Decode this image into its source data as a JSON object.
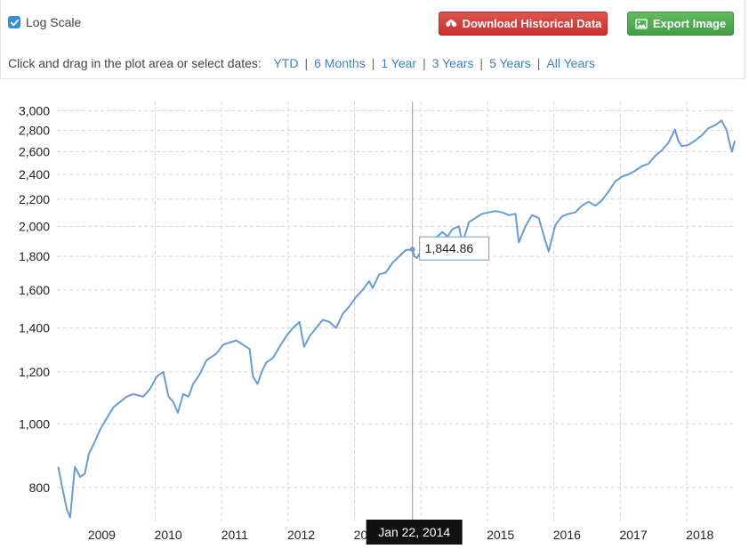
{
  "toolbar": {
    "log_scale_label": "Log Scale",
    "log_scale_checked": true,
    "download_label": "Download Historical Data",
    "export_label": "Export Image",
    "download_color": "#d9534f",
    "export_color": "#5cb85c"
  },
  "range_selector": {
    "prompt": "Click and drag in the plot area or select dates:",
    "options": [
      "YTD",
      "6 Months",
      "1 Year",
      "3 Years",
      "5 Years",
      "All Years"
    ]
  },
  "chart_data": {
    "type": "line",
    "title": "",
    "xlabel": "",
    "ylabel": "",
    "y_scale": "log",
    "grid": true,
    "line_color": "#6a9bd1",
    "xlim": [
      2008.7,
      2018.9
    ],
    "ylim": [
      710,
      3100
    ],
    "y_ticks": [
      800,
      1000,
      1200,
      1400,
      1600,
      1800,
      2000,
      2200,
      2400,
      2600,
      2800,
      3000
    ],
    "y_tick_labels": [
      "800",
      "1,000",
      "1,200",
      "1,400",
      "1,600",
      "1,800",
      "2,000",
      "2,200",
      "2,400",
      "2,600",
      "2,800",
      "3,000"
    ],
    "x_ticks": [
      2009,
      2010,
      2011,
      2012,
      2013,
      2014,
      2015,
      2016,
      2017,
      2018
    ],
    "x_tick_labels": [
      "2009",
      "2010",
      "2011",
      "2012",
      "2013",
      "2014",
      "2015",
      "2016",
      "2017",
      "2018"
    ],
    "series": [
      {
        "x": [
          2008.72,
          2008.78,
          2008.85,
          2008.9,
          2008.97,
          2009.05,
          2009.12,
          2009.18,
          2009.25,
          2009.35,
          2009.45,
          2009.55,
          2009.65,
          2009.75,
          2009.85,
          2010.0,
          2010.1,
          2010.2,
          2010.3,
          2010.38,
          2010.45,
          2010.52,
          2010.6,
          2010.68,
          2010.75,
          2010.85,
          2010.95,
          2011.1,
          2011.2,
          2011.3,
          2011.4,
          2011.5,
          2011.6,
          2011.65,
          2011.72,
          2011.78,
          2011.85,
          2011.95,
          2012.05,
          2012.15,
          2012.25,
          2012.35,
          2012.42,
          2012.5,
          2012.6,
          2012.7,
          2012.8,
          2012.9,
          2013.0,
          2013.1,
          2013.2,
          2013.3,
          2013.4,
          2013.45,
          2013.55,
          2013.65,
          2013.75,
          2013.85,
          2013.95,
          2014.05,
          2014.08,
          2014.12,
          2014.2,
          2014.3,
          2014.4,
          2014.5,
          2014.58,
          2014.65,
          2014.75,
          2014.8,
          2014.9,
          2015.0,
          2015.1,
          2015.2,
          2015.3,
          2015.4,
          2015.5,
          2015.6,
          2015.65,
          2015.75,
          2015.85,
          2015.95,
          2016.05,
          2016.1,
          2016.2,
          2016.3,
          2016.4,
          2016.5,
          2016.6,
          2016.7,
          2016.8,
          2016.9,
          2017.0,
          2017.1,
          2017.2,
          2017.3,
          2017.4,
          2017.5,
          2017.6,
          2017.7,
          2017.8,
          2017.9,
          2018.0,
          2018.05,
          2018.1,
          2018.2,
          2018.3,
          2018.4,
          2018.5,
          2018.6,
          2018.7,
          2018.78,
          2018.82,
          2018.86,
          2018.9
        ],
        "y": [
          860,
          800,
          740,
          720,
          860,
          830,
          840,
          900,
          930,
          980,
          1020,
          1060,
          1080,
          1100,
          1110,
          1100,
          1130,
          1180,
          1200,
          1100,
          1080,
          1040,
          1110,
          1100,
          1150,
          1190,
          1250,
          1280,
          1320,
          1330,
          1340,
          1320,
          1300,
          1180,
          1150,
          1200,
          1240,
          1260,
          1310,
          1360,
          1400,
          1430,
          1310,
          1360,
          1400,
          1440,
          1430,
          1400,
          1470,
          1510,
          1560,
          1600,
          1650,
          1610,
          1690,
          1700,
          1760,
          1800,
          1840,
          1845,
          1800,
          1790,
          1850,
          1880,
          1920,
          1960,
          1930,
          1980,
          2000,
          1880,
          2030,
          2060,
          2090,
          2100,
          2110,
          2100,
          2080,
          2090,
          1890,
          2000,
          2080,
          2060,
          1900,
          1830,
          2010,
          2070,
          2090,
          2100,
          2150,
          2180,
          2150,
          2190,
          2260,
          2340,
          2380,
          2400,
          2430,
          2470,
          2490,
          2560,
          2610,
          2680,
          2810,
          2700,
          2650,
          2660,
          2700,
          2750,
          2820,
          2850,
          2900,
          2800,
          2680,
          2600,
          2700
        ]
      }
    ],
    "annotations": [
      {
        "x": 2014.05,
        "y": 1844.86,
        "label": "1,844.86",
        "date_label": "Jan 22, 2014"
      }
    ]
  }
}
